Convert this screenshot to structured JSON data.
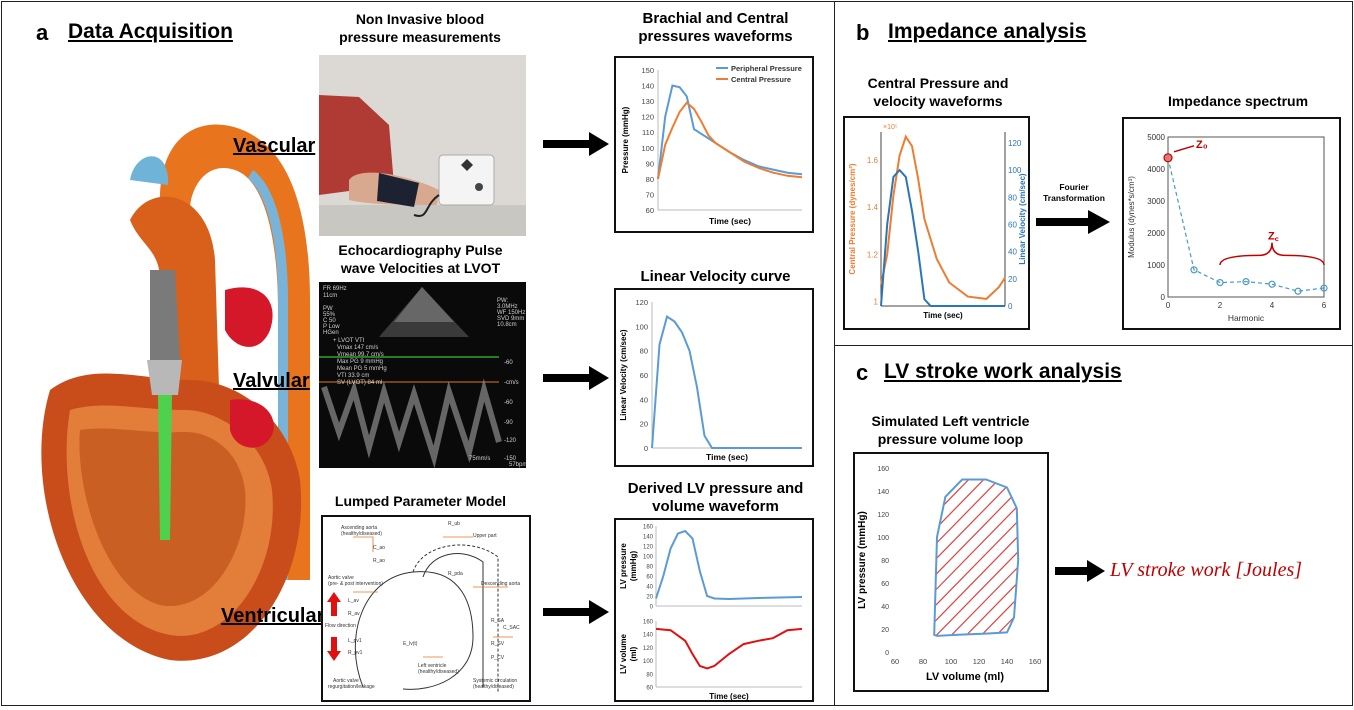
{
  "panel_a": {
    "letter": "a",
    "title": "Data Acquisition",
    "rows": [
      "Vascular",
      "Valvular",
      "Ventricular"
    ],
    "captions": {
      "nibp": [
        "Non Invasive blood",
        "pressure measurements"
      ],
      "echo": [
        "Echocardiography Pulse",
        "wave Velocities at LVOT"
      ],
      "lumped": "Lumped Parameter Model",
      "brachial": [
        "Brachial and Central",
        "pressures waveforms"
      ],
      "linvel": "Linear Velocity curve",
      "derived": [
        "Derived LV pressure and",
        "volume waveform"
      ]
    },
    "echo_text": {
      "top_left": [
        "FR 69Hz",
        "11cm"
      ],
      "settings": [
        "PW",
        "55%",
        "C 50",
        "P Low",
        "HGen"
      ],
      "top_right": [
        "PW:",
        "3.0MHz",
        "WF 150Hz",
        "SVD 9mm",
        "10.8cm"
      ],
      "measurements": [
        "+ LVOT VTI",
        "Vmax 147 cm/s",
        "Vmean 99.7 cm/s",
        "Max PG 9 mmHg",
        "Mean PG 5 mmHg",
        "VTI 33.9 cm",
        "SV (LVOT) 84 ml"
      ],
      "scale": [
        "-60",
        "-cm/s",
        "-60",
        "-90",
        "-120",
        "-150"
      ],
      "bottom_right": [
        "75mm/s",
        "57bpm"
      ]
    },
    "lumped_text": [
      "Ascending aorta",
      "(healthy/diseased)",
      "C_ao",
      "R_ao",
      "Aortic valve",
      "(pre- & post intervention)",
      "L_av",
      "R_av",
      "Flow direction",
      "L_pv1",
      "R_pv1",
      "Aortic valve",
      "regurgitation/leakage",
      "R_ub",
      "Upper part",
      "R_pda",
      "Descending aorta",
      "E_lv(t)",
      "Left ventricle",
      "(healthy/diseased)",
      "R_SA",
      "C_SAC",
      "R_SV",
      "P_CV",
      "Systemic circulation",
      "(healthy/diseased)"
    ]
  },
  "chart_brachial": {
    "ylabel": "Pressure (mmHg)",
    "xlabel": "Time (sec)",
    "ylim": [
      60,
      150
    ],
    "yticks": [
      "60",
      "70",
      "80",
      "90",
      "100",
      "110",
      "120",
      "130",
      "140",
      "150"
    ],
    "legend": [
      "Peripheral Pressure",
      "Central Pressure"
    ],
    "colors": {
      "peripheral": "#5b9bd5",
      "central": "#ed7d31"
    }
  },
  "chart_linvel": {
    "ylabel": "Linear Velocity (cm/sec)",
    "xlabel": "Time (sec)",
    "ylim": [
      0,
      120
    ],
    "yticks": [
      "0",
      "20",
      "40",
      "60",
      "80",
      "100",
      "120"
    ]
  },
  "chart_lvp": {
    "ylabel": [
      "LV pressure",
      "(mmHg)"
    ],
    "ylim": [
      0,
      160
    ],
    "yticks": [
      "0",
      "20",
      "40",
      "60",
      "80",
      "100",
      "120",
      "140",
      "160"
    ]
  },
  "chart_lvv": {
    "ylabel": [
      "LV volume",
      "(ml)"
    ],
    "xlabel": "Time (sec)",
    "ylim": [
      60,
      160
    ],
    "yticks": [
      "60",
      "80",
      "100",
      "120",
      "140",
      "160"
    ]
  },
  "panel_b": {
    "letter": "b",
    "title": "Impedance analysis",
    "cap_left": [
      "Central Pressure and",
      "velocity waveforms"
    ],
    "cap_right": "Impedance spectrum",
    "arrow_text": [
      "Fourier",
      "Transformation"
    ],
    "cv_chart": {
      "ylabel_left": "Central Pressure (dynes/cm²)",
      "ylabel_right": "Linear Velocity (cm/sec)",
      "xlabel": "Time (sec)",
      "exp": "×10⁵",
      "left_ticks": [
        "1",
        "1.2",
        "1.4",
        "1.6"
      ],
      "right_ticks": [
        "0",
        "20",
        "40",
        "60",
        "80",
        "100",
        "120"
      ]
    },
    "imp_chart": {
      "ylabel": "Modulus (dynes*s/cm³)",
      "xlabel": "Harmonic",
      "yticks": [
        "0",
        "1000",
        "2000",
        "3000",
        "4000",
        "5000"
      ],
      "xticks": [
        "0",
        "2",
        "4",
        "6"
      ],
      "z0": "Z₀",
      "zc": "Z꜀"
    }
  },
  "panel_c": {
    "letter": "c",
    "title": "LV stroke work analysis",
    "cap": [
      "Simulated Left ventricle",
      "pressure volume loop"
    ],
    "ylabel": "LV pressure (mmHg)",
    "xlabel": "LV volume (ml)",
    "yticks": [
      "0",
      "20",
      "40",
      "60",
      "80",
      "100",
      "120",
      "140",
      "160"
    ],
    "xticks": [
      "60",
      "80",
      "100",
      "120",
      "140",
      "160"
    ],
    "result": "LV stroke work [Joules]"
  },
  "chart_data": [
    {
      "type": "line",
      "title": "Brachial and Central pressures waveforms",
      "ylabel": "Pressure (mmHg)",
      "xlabel": "Time (sec)",
      "ylim": [
        60,
        150
      ],
      "x": [
        0,
        0.05,
        0.1,
        0.15,
        0.2,
        0.25,
        0.3,
        0.35,
        0.4,
        0.5,
        0.6,
        0.7,
        0.8,
        0.9,
        1.0
      ],
      "series": [
        {
          "name": "Peripheral Pressure",
          "values": [
            80,
            120,
            140,
            139,
            133,
            112,
            109,
            106,
            103,
            97,
            92,
            88,
            86,
            84,
            83
          ]
        },
        {
          "name": "Central Pressure",
          "values": [
            80,
            102,
            113,
            123,
            129,
            125,
            117,
            108,
            103,
            97,
            91,
            87,
            84,
            82,
            81
          ]
        }
      ]
    },
    {
      "type": "line",
      "title": "Linear Velocity curve",
      "ylabel": "Linear Velocity (cm/sec)",
      "xlabel": "Time (sec)",
      "ylim": [
        0,
        120
      ],
      "x": [
        0,
        0.05,
        0.1,
        0.15,
        0.2,
        0.25,
        0.3,
        0.35,
        0.4,
        0.5,
        0.7,
        1.0
      ],
      "values": [
        0,
        85,
        108,
        104,
        95,
        80,
        50,
        10,
        0,
        0,
        0,
        0
      ]
    },
    {
      "type": "line",
      "ylabel": "LV pressure (mmHg)",
      "ylim": [
        0,
        160
      ],
      "x": [
        0,
        0.05,
        0.1,
        0.15,
        0.2,
        0.25,
        0.3,
        0.35,
        0.4,
        0.5,
        0.7,
        1.0
      ],
      "values": [
        15,
        60,
        115,
        145,
        150,
        135,
        70,
        20,
        15,
        14,
        16,
        18
      ]
    },
    {
      "type": "line",
      "ylabel": "LV volume (ml)",
      "xlabel": "Time (sec)",
      "ylim": [
        60,
        160
      ],
      "x": [
        0,
        0.1,
        0.2,
        0.25,
        0.3,
        0.35,
        0.4,
        0.5,
        0.6,
        0.7,
        0.8,
        0.9,
        1.0
      ],
      "values": [
        148,
        146,
        130,
        110,
        92,
        88,
        92,
        110,
        125,
        130,
        134,
        146,
        148
      ]
    },
    {
      "type": "line",
      "ylabel": "Central Pressure (dynes/cm²)",
      "xlabel": "Time (sec)",
      "series": [
        {
          "name": "Central Pressure",
          "x": [
            0,
            0.05,
            0.1,
            0.15,
            0.2,
            0.25,
            0.3,
            0.35,
            0.45,
            0.55,
            0.7,
            0.85,
            0.95,
            1.0
          ],
          "values": [
            1.07,
            1.2,
            1.45,
            1.62,
            1.7,
            1.66,
            1.52,
            1.35,
            1.18,
            1.08,
            1.02,
            1.01,
            1.06,
            1.1
          ]
        },
        {
          "name": "Linear Velocity",
          "x": [
            0,
            0.05,
            0.1,
            0.15,
            0.2,
            0.25,
            0.3,
            0.35,
            0.4,
            1.0
          ],
          "values": [
            0,
            60,
            95,
            100,
            95,
            70,
            40,
            5,
            0,
            0
          ]
        }
      ]
    },
    {
      "type": "scatter",
      "title": "Impedance spectrum",
      "ylabel": "Modulus (dynes*s/cm³)",
      "xlabel": "Harmonic",
      "ylim": [
        0,
        5000
      ],
      "xlim": [
        0,
        6
      ],
      "x": [
        0,
        1,
        2,
        3,
        4,
        5,
        6
      ],
      "values": [
        4350,
        850,
        450,
        480,
        400,
        180,
        280
      ]
    },
    {
      "type": "line",
      "ylabel": "LV pressure (mmHg)",
      "xlabel": "LV volume (ml)",
      "ylim": [
        0,
        160
      ],
      "xlim": [
        60,
        160
      ],
      "x": [
        88,
        90,
        96,
        108,
        125,
        140,
        147,
        148,
        145,
        140,
        125,
        105,
        90,
        88
      ],
      "values": [
        15,
        100,
        135,
        150,
        150,
        143,
        125,
        80,
        30,
        17,
        16,
        15,
        14,
        15
      ]
    }
  ]
}
